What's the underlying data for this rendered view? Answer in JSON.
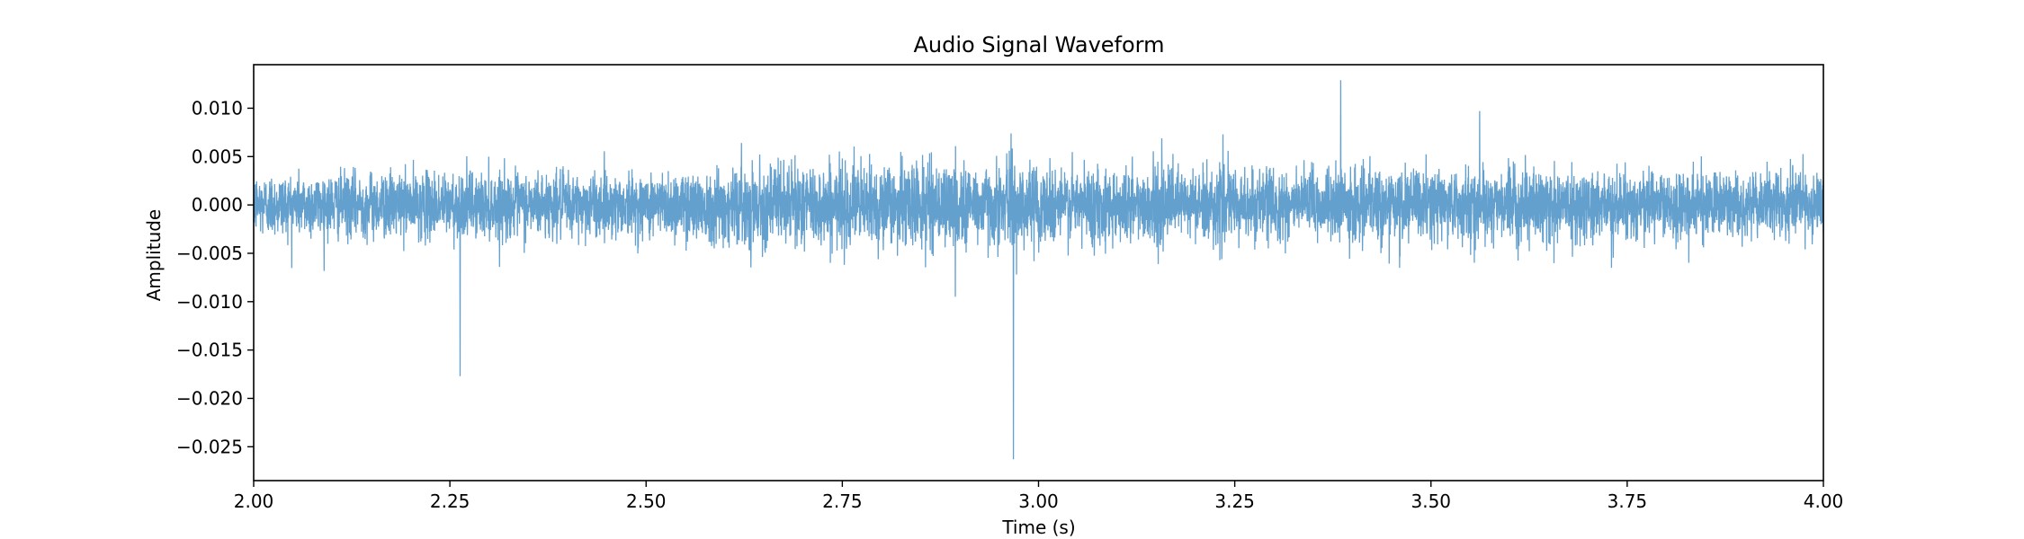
{
  "chart_data": {
    "type": "line",
    "title": "Audio Signal Waveform",
    "xlabel": "Time (s)",
    "ylabel": "Amplitude",
    "xlim": [
      2.0,
      4.0
    ],
    "ylim": [
      -0.0285,
      0.0145
    ],
    "x_ticks": [
      2.0,
      2.25,
      2.5,
      2.75,
      3.0,
      3.25,
      3.5,
      3.75,
      4.0
    ],
    "x_tick_labels": [
      "2.00",
      "2.25",
      "2.50",
      "2.75",
      "3.00",
      "3.25",
      "3.50",
      "3.75",
      "4.00"
    ],
    "y_ticks": [
      0.01,
      0.005,
      0.0,
      -0.005,
      -0.01,
      -0.015,
      -0.02,
      -0.025
    ],
    "y_tick_labels": [
      "0.010",
      "0.005",
      "0.000",
      "−0.005",
      "−0.010",
      "−0.015",
      "−0.020",
      "−0.025"
    ],
    "grid": false,
    "legend": "none",
    "line_color": "#5b9bcb",
    "series": [
      {
        "sample_rate_hz": 4000,
        "baseline_noise_std": 0.0016,
        "noise_envelope": [
          {
            "x": 2.0,
            "scale": 1.0
          },
          {
            "x": 2.25,
            "scale": 1.05
          },
          {
            "x": 2.5,
            "scale": 1.0
          },
          {
            "x": 2.62,
            "scale": 1.25
          },
          {
            "x": 2.85,
            "scale": 1.35
          },
          {
            "x": 3.0,
            "scale": 1.25
          },
          {
            "x": 3.25,
            "scale": 1.15
          },
          {
            "x": 3.5,
            "scale": 1.1
          },
          {
            "x": 3.75,
            "scale": 1.05
          },
          {
            "x": 4.0,
            "scale": 1.0
          }
        ],
        "peaks": [
          {
            "x": 2.263,
            "y": -0.0177
          },
          {
            "x": 2.894,
            "y": -0.0095
          },
          {
            "x": 2.968,
            "y": -0.0263
          },
          {
            "x": 2.972,
            "y": -0.0072
          },
          {
            "x": 2.965,
            "y": 0.0074
          },
          {
            "x": 3.235,
            "y": 0.0073
          },
          {
            "x": 3.385,
            "y": 0.0129
          },
          {
            "x": 3.46,
            "y": -0.0065
          },
          {
            "x": 3.562,
            "y": 0.0097
          },
          {
            "x": 3.73,
            "y": -0.0065
          }
        ]
      }
    ]
  }
}
